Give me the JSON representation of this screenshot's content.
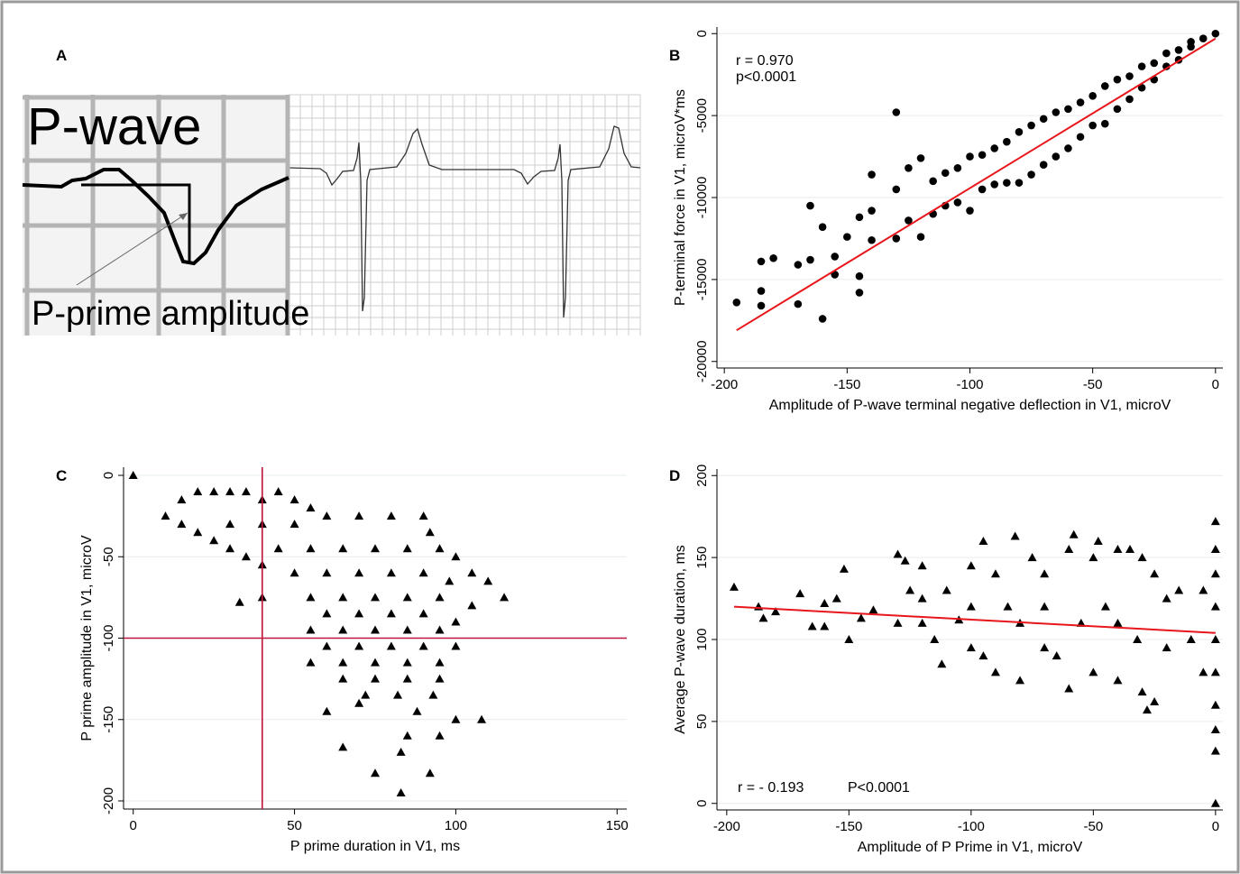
{
  "panel_a": {
    "label": "A",
    "title": "P-wave",
    "annotation": "P-prime amplitude"
  },
  "chart_data": [
    {
      "type": "scatter",
      "panel_label": "B",
      "marker": "circle",
      "color": "#000000",
      "x_label": "Amplitude of P-wave terminal negative deflection  in V1, microV",
      "y_label": "P-terminal force in V1, microV*ms",
      "annotations": [
        "r = 0.970",
        "p<0.0001"
      ],
      "xlim": [
        -203,
        3
      ],
      "ylim": [
        -20400,
        400
      ],
      "xticks": [
        -200,
        -150,
        -100,
        -50,
        0
      ],
      "yticks": [
        0,
        -5000,
        -10000,
        -15000,
        -20000
      ],
      "grid": true,
      "x": [
        0,
        -5,
        -10,
        -10,
        -15,
        -15,
        -20,
        -20,
        -25,
        -25,
        -30,
        -30,
        -35,
        -35,
        -40,
        -40,
        -45,
        -45,
        -50,
        -50,
        -55,
        -55,
        -60,
        -60,
        -65,
        -65,
        -70,
        -70,
        -75,
        -75,
        -80,
        -80,
        -85,
        -85,
        -90,
        -90,
        -95,
        -95,
        -100,
        -100,
        -105,
        -105,
        -110,
        -110,
        -115,
        -115,
        -120,
        -120,
        -125,
        -125,
        -130,
        -130,
        -130,
        -140,
        -140,
        -140,
        -145,
        -145,
        -145,
        -150,
        -155,
        -155,
        -160,
        -160,
        -165,
        -165,
        -170,
        -170,
        -180,
        -185,
        -185,
        -185,
        -195
      ],
      "y": [
        0,
        -300,
        -500,
        -800,
        -1000,
        -1600,
        -1200,
        -2000,
        -1800,
        -2800,
        -2000,
        -3300,
        -2600,
        -4000,
        -2800,
        -4600,
        -3200,
        -5500,
        -3800,
        -5600,
        -4200,
        -6300,
        -4600,
        -7000,
        -4800,
        -7500,
        -5200,
        -8000,
        -5600,
        -8600,
        -6000,
        -9100,
        -6600,
        -9100,
        -7000,
        -9200,
        -7400,
        -9500,
        -7500,
        -10800,
        -8200,
        -10300,
        -8500,
        -10500,
        -9000,
        -11000,
        -7600,
        -12400,
        -8200,
        -11400,
        -4800,
        -9500,
        -12500,
        -8600,
        -10800,
        -12600,
        -11200,
        -14800,
        -15800,
        -12400,
        -13600,
        -14700,
        -11800,
        -17400,
        -10500,
        -13800,
        -14100,
        -16500,
        -13700,
        -13900,
        -15700,
        -16600,
        -16400
      ],
      "fit": {
        "color": "#e8161b",
        "x": [
          -195,
          0
        ],
        "y": [
          -18100,
          -300
        ]
      }
    },
    {
      "type": "scatter",
      "panel_label": "C",
      "marker": "triangle",
      "color": "#000000",
      "x_label": "P prime duration in V1, ms",
      "y_label": "P prime amplitude in V1, microV",
      "xlim": [
        -3,
        153
      ],
      "ylim": [
        -205,
        5
      ],
      "xticks": [
        0,
        50,
        100,
        150
      ],
      "yticks": [
        0,
        -50,
        -100,
        -150,
        -200
      ],
      "grid": true,
      "x": [
        0,
        10,
        15,
        20,
        25,
        30,
        35,
        40,
        45,
        50,
        55,
        15,
        20,
        25,
        30,
        35,
        40,
        30,
        40,
        50,
        60,
        70,
        80,
        90,
        92,
        95,
        100,
        105,
        110,
        115,
        45,
        55,
        65,
        75,
        85,
        50,
        60,
        70,
        80,
        90,
        98,
        55,
        65,
        75,
        85,
        95,
        105,
        33,
        40,
        60,
        70,
        80,
        90,
        100,
        55,
        65,
        75,
        85,
        95,
        60,
        70,
        80,
        90,
        100,
        55,
        65,
        75,
        85,
        95,
        65,
        75,
        85,
        95,
        72,
        82,
        93,
        60,
        70,
        88,
        100,
        108,
        85,
        95,
        65,
        83,
        75,
        92,
        83
      ],
      "y": [
        0,
        -25,
        -15,
        -10,
        -10,
        -10,
        -10,
        -15,
        -10,
        -15,
        -20,
        -30,
        -35,
        -40,
        -45,
        -50,
        -55,
        -30,
        -30,
        -30,
        -25,
        -25,
        -25,
        -25,
        -35,
        -45,
        -50,
        -60,
        -65,
        -75,
        -45,
        -45,
        -45,
        -45,
        -45,
        -60,
        -60,
        -60,
        -60,
        -60,
        -65,
        -75,
        -75,
        -75,
        -75,
        -75,
        -80,
        -78,
        -75,
        -85,
        -85,
        -85,
        -85,
        -90,
        -95,
        -95,
        -95,
        -95,
        -95,
        -105,
        -105,
        -105,
        -105,
        -105,
        -115,
        -115,
        -115,
        -115,
        -115,
        -125,
        -125,
        -125,
        -125,
        -135,
        -135,
        -135,
        -145,
        -140,
        -145,
        -150,
        -150,
        -160,
        -160,
        -167,
        -170,
        -183,
        -183,
        -195
      ],
      "reference_lines": {
        "color": "#c0143c",
        "x": 40,
        "y": -100
      }
    },
    {
      "type": "scatter",
      "panel_label": "D",
      "marker": "triangle",
      "color": "#000000",
      "x_label": "Amplitude of P Prime in V1, microV",
      "y_label": "Average P-wave duration, ms",
      "annotations": [
        "r = - 0.193",
        "P<0.0001"
      ],
      "xlim": [
        -204,
        3
      ],
      "ylim": [
        -4,
        204
      ],
      "xticks": [
        -200,
        -150,
        -100,
        -50,
        0
      ],
      "yticks": [
        0,
        50,
        100,
        150,
        200
      ],
      "grid": true,
      "x": [
        -197,
        -187,
        -185,
        -180,
        -170,
        -165,
        -160,
        -160,
        -155,
        -152,
        -150,
        -145,
        -140,
        -130,
        -127,
        -125,
        -120,
        -120,
        -115,
        -112,
        -110,
        -105,
        -100,
        -100,
        -95,
        -95,
        -90,
        -90,
        -85,
        -82,
        -80,
        -80,
        -75,
        -70,
        -70,
        -65,
        -60,
        -60,
        -58,
        -55,
        -50,
        -50,
        -48,
        -45,
        -40,
        -40,
        -35,
        -32,
        -30,
        -30,
        -28,
        -25,
        -25,
        -20,
        -15,
        -10,
        -5,
        -5,
        0,
        0,
        0,
        0,
        0,
        0,
        0,
        0,
        0,
        0,
        -130,
        -120,
        -100,
        -70,
        -40,
        -20
      ],
      "y": [
        132,
        120,
        113,
        117,
        128,
        108,
        108,
        122,
        125,
        143,
        100,
        113,
        118,
        152,
        148,
        130,
        145,
        110,
        100,
        85,
        130,
        112,
        145,
        95,
        160,
        90,
        140,
        80,
        120,
        163,
        110,
        75,
        150,
        140,
        95,
        90,
        155,
        70,
        164,
        110,
        150,
        80,
        160,
        120,
        155,
        75,
        155,
        100,
        68,
        150,
        57,
        62,
        140,
        125,
        130,
        100,
        130,
        80,
        172,
        155,
        140,
        120,
        100,
        80,
        60,
        45,
        32,
        0,
        110,
        125,
        120,
        120,
        110,
        95
      ],
      "fit": {
        "color": "#e8161b",
        "x": [
          -197,
          0
        ],
        "y": [
          120,
          104
        ]
      }
    }
  ]
}
